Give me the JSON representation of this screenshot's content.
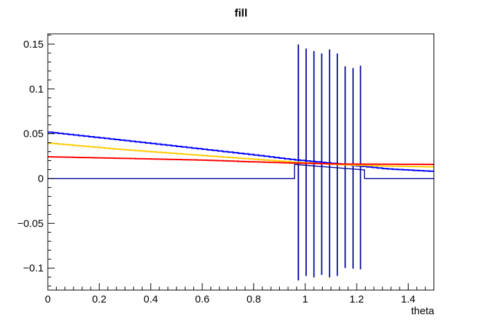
{
  "title": "fill",
  "colors": {
    "frame": "#000000",
    "text": "#000000",
    "histogram": "#000099",
    "curve_blue": "#0000ff",
    "curve_yellow": "#ffcc00",
    "curve_red": "#ff0000",
    "background": "#ffffff"
  },
  "axes": {
    "x": {
      "min": 0,
      "max": 1.5,
      "major_ticks": [
        0,
        0.2,
        0.4,
        0.6,
        0.8,
        1.0,
        1.2,
        1.4
      ],
      "major_labels": [
        "0",
        "0.2",
        "0.4",
        "0.6",
        "0.8",
        "1",
        "1.2",
        "1.4"
      ],
      "minor_interval": 0.033333,
      "ticks_inside": true
    },
    "y": {
      "min": -0.1245,
      "max": 0.1615,
      "major_ticks": [
        0.15,
        0.1,
        0.05,
        0,
        -0.05,
        -0.1
      ],
      "major_labels": [
        "0.15",
        "0.1",
        "0.05",
        "0",
        "−0.05",
        "−0.1"
      ],
      "minor_interval": 0.01,
      "ticks_inside": true
    }
  },
  "chart_data": {
    "type": "line",
    "title": "fill",
    "xlabel": "theta",
    "ylabel": "",
    "x_range": [
      0,
      1.5
    ],
    "y_range": [
      -0.1245,
      0.1615
    ],
    "grid": false,
    "legend": false,
    "series": [
      {
        "name": "blue-curve",
        "color": "#0000ff",
        "style": "stepped-line",
        "x": [
          0,
          0.3,
          0.6,
          0.783,
          0.971,
          1.146,
          1.321,
          1.5
        ],
        "y": [
          0.052,
          0.0426,
          0.033,
          0.0271,
          0.0207,
          0.016,
          0.0108,
          0.008
        ]
      },
      {
        "name": "yellow-curve",
        "color": "#ffcc00",
        "style": "stepped-line",
        "x": [
          0,
          0.3,
          0.6,
          0.783,
          0.971,
          1.146,
          1.321,
          1.5
        ],
        "y": [
          0.0397,
          0.0322,
          0.0258,
          0.022,
          0.0181,
          0.0154,
          0.0139,
          0.013
        ]
      },
      {
        "name": "red-curve",
        "color": "#ff0000",
        "style": "stepped-line",
        "x": [
          0,
          0.3,
          0.6,
          0.783,
          0.971,
          1.146,
          1.321,
          1.5
        ],
        "y": [
          0.0243,
          0.0225,
          0.0206,
          0.0188,
          0.0172,
          0.0162,
          0.016,
          0.0158
        ]
      }
    ],
    "histogram": {
      "name": "fill-histogram",
      "color": "#000099",
      "baseline": 0,
      "region": [
        0.9586,
        1.2303
      ],
      "inner_level_start": 0.0158,
      "inner_level_end": 0.0096,
      "spikes": [
        {
          "x": 0.9731,
          "top": 0.1496,
          "bottom": -0.1137
        },
        {
          "x": 1.0035,
          "top": 0.145,
          "bottom": -0.1087
        },
        {
          "x": 1.0339,
          "top": 0.1423,
          "bottom": -0.1103
        },
        {
          "x": 1.064,
          "top": 0.1396,
          "bottom": -0.1076
        },
        {
          "x": 1.0944,
          "top": 0.1442,
          "bottom": -0.1103
        },
        {
          "x": 1.1248,
          "top": 0.1396,
          "bottom": -0.1087
        },
        {
          "x": 1.1552,
          "top": 0.1253,
          "bottom": -0.0999
        },
        {
          "x": 1.1859,
          "top": 0.1233,
          "bottom": -0.1006
        },
        {
          "x": 1.2147,
          "top": 0.126,
          "bottom": -0.1014
        }
      ]
    }
  }
}
